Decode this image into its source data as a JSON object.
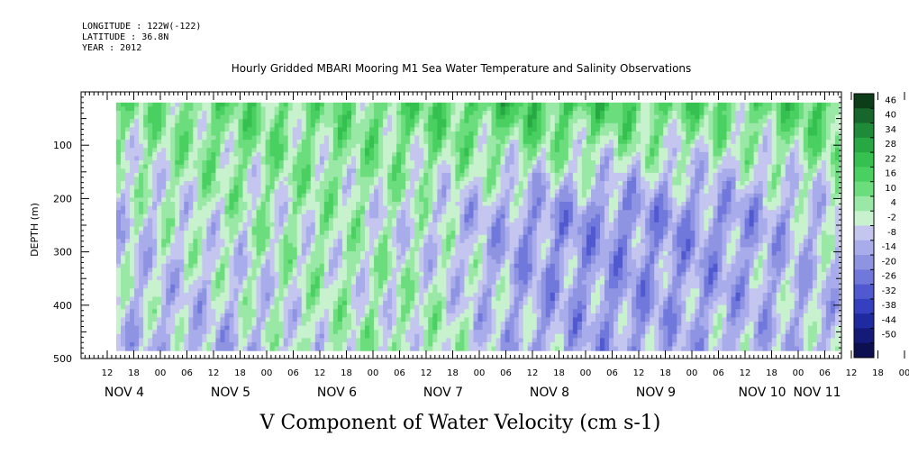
{
  "header": {
    "longitude": "LONGITUDE : 122W(-122)",
    "latitude": "LATITUDE : 36.8N",
    "year": "YEAR : 2012"
  },
  "chart_data": {
    "type": "heatmap",
    "title": "Hourly Gridded MBARI Mooring M1 Sea Water Temperature and Salinity Observations",
    "xlabel": "V Component of Water Velocity (cm s-1)",
    "ylabel": "DEPTH (m)",
    "ylim": [
      500,
      0
    ],
    "y_ticks": [
      100,
      200,
      300,
      400,
      500
    ],
    "x_hour_labels": [
      "12",
      "18",
      "00",
      "06",
      "12",
      "18",
      "00",
      "06",
      "12",
      "18",
      "00",
      "06",
      "12",
      "18",
      "00",
      "06",
      "12",
      "18",
      "00",
      "06",
      "12",
      "18",
      "00",
      "06",
      "12",
      "18",
      "00",
      "06",
      "12",
      "18",
      "00",
      "06"
    ],
    "x_day_labels": [
      "NOV  4",
      "NOV  5",
      "NOV  6",
      "NOV  7",
      "NOV  8",
      "NOV  9",
      "NOV 10",
      "NOV 11"
    ],
    "colorbar_labels": [
      "46",
      "40",
      "34",
      "28",
      "22",
      "16",
      "10",
      "4",
      "-2",
      "-8",
      "-14",
      "-20",
      "-26",
      "-32",
      "-38",
      "-44",
      "-50"
    ],
    "colorbar_colors": [
      "#0c3d18",
      "#17662b",
      "#1f8a37",
      "#27a843",
      "#35c04f",
      "#49d061",
      "#6bdd7d",
      "#9ae8a6",
      "#c7f2cd",
      "#c4c6f0",
      "#a9acea",
      "#8f94e2",
      "#7178dc",
      "#5059d0",
      "#3440c0",
      "#1f2aa0",
      "#131a78",
      "#0c1050"
    ],
    "day_columns": [
      {
        "day": "NOV 4",
        "v_surface": 8,
        "v_mid": -4,
        "v_deep": -6
      },
      {
        "day": "NOV 5",
        "v_surface": 12,
        "v_mid": 2,
        "v_deep": -8
      },
      {
        "day": "NOV 6",
        "v_surface": 10,
        "v_mid": 4,
        "v_deep": 2
      },
      {
        "day": "NOV 7",
        "v_surface": 14,
        "v_mid": -2,
        "v_deep": 4
      },
      {
        "day": "NOV 8",
        "v_surface": 20,
        "v_mid": -14,
        "v_deep": -10
      },
      {
        "day": "NOV 9",
        "v_surface": 16,
        "v_mid": -16,
        "v_deep": -12
      },
      {
        "day": "NOV 10",
        "v_surface": 12,
        "v_mid": -14,
        "v_deep": -8
      },
      {
        "day": "NOV 11",
        "v_surface": 18,
        "v_mid": -4,
        "v_deep": -6
      }
    ]
  }
}
